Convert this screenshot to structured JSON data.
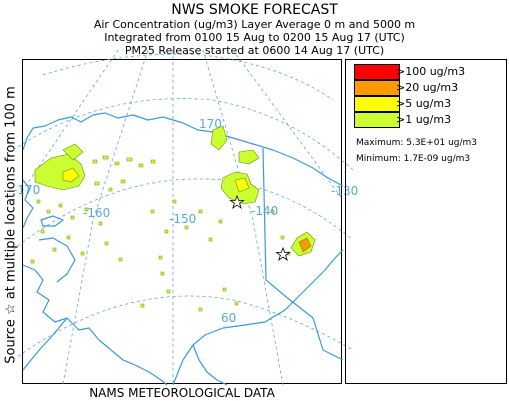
{
  "header": {
    "title": "NWS SMOKE FORECAST",
    "line1": "Air Concentration (ug/m3) Layer Average    0 m and  5000 m",
    "line2": "Integrated from 0100 15 Aug to 0200 15 Aug 17 (UTC)",
    "line3": "PM25 Release started at 0600 14 Aug 17 (UTC)"
  },
  "side_label": "Source ☆ at multiple locations   from   100 m",
  "footer": "NAMS METEOROLOGICAL DATA",
  "map": {
    "lon_labels": [
      "-170",
      "-160",
      "-150",
      "-140",
      "-130",
      "170",
      "60"
    ],
    "colors": {
      "gridline": "#5aa9d6",
      "coastline": "#3a9ad9",
      "border": "#3a9ad9",
      "smoke_light": "#ccff33",
      "smoke_yellow": "#ffff00",
      "smoke_orange": "#ff9900",
      "smoke_red": "#ff0000",
      "smoke_outline": "#6b8e00"
    },
    "source_marker": "star-icon"
  },
  "legend": {
    "items": [
      {
        "label": ">100 ug/m3",
        "color": "#ff0000"
      },
      {
        "label": ">20 ug/m3",
        "color": "#ff9900"
      },
      {
        "label": ">5 ug/m3",
        "color": "#ffff00"
      },
      {
        "label": ">1 ug/m3",
        "color": "#ccff33"
      }
    ],
    "maximum": "Maximum: 5.3E+01 ug/m3",
    "minimum": "Minimum: 1.7E-09 ug/m3"
  }
}
